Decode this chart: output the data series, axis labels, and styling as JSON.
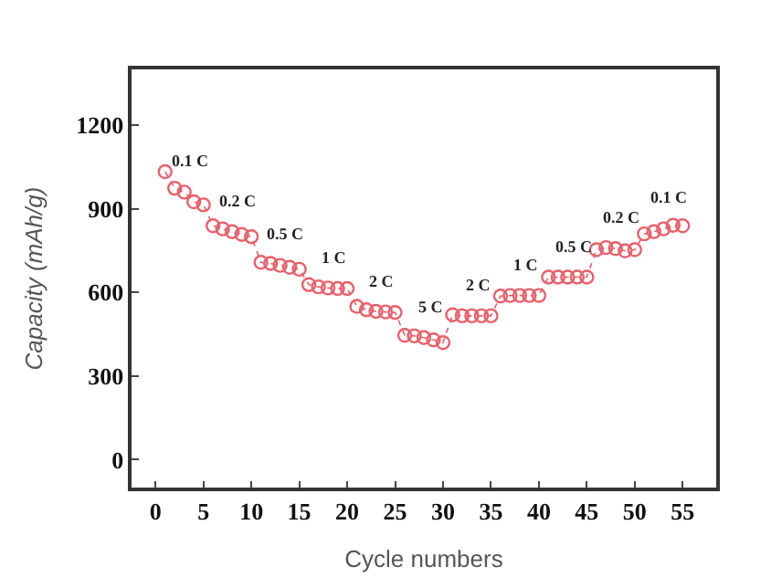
{
  "chart_data": {
    "type": "line",
    "xlabel": "Cycle numbers",
    "ylabel": "Capacity (mAh/g)",
    "x": [
      1,
      2,
      3,
      4,
      5,
      6,
      7,
      8,
      9,
      10,
      11,
      12,
      13,
      14,
      15,
      16,
      17,
      18,
      19,
      20,
      21,
      22,
      23,
      24,
      25,
      26,
      27,
      28,
      29,
      30,
      31,
      32,
      33,
      34,
      35,
      36,
      37,
      38,
      39,
      40,
      41,
      42,
      43,
      44,
      45,
      46,
      47,
      48,
      49,
      50,
      51,
      52,
      53,
      54,
      55
    ],
    "series": [
      {
        "color": "#e8606a",
        "values": [
          1033,
          974,
          960,
          925,
          914,
          839,
          828,
          818,
          808,
          800,
          708,
          704,
          697,
          690,
          683,
          628,
          620,
          616,
          614,
          614,
          550,
          538,
          532,
          530,
          528,
          446,
          444,
          438,
          430,
          420,
          520,
          516,
          516,
          516,
          516,
          587,
          589,
          589,
          589,
          589,
          655,
          655,
          655,
          655,
          655,
          753,
          761,
          757,
          749,
          753,
          810,
          818,
          828,
          841,
          839
        ]
      }
    ],
    "marker": "circle",
    "line_style": "dotted",
    "xlim": [
      -2.5,
      58.5
    ],
    "xticks": [
      0,
      5,
      10,
      15,
      20,
      25,
      30,
      35,
      40,
      45,
      50,
      55
    ],
    "ylim": [
      -100,
      1400
    ],
    "yticks": [
      0,
      300,
      600,
      900,
      1200
    ],
    "annotations": [
      {
        "text": "0.1 C",
        "x": 3,
        "y": 960
      },
      {
        "text": "0.2 C",
        "x": 8,
        "y": 818
      },
      {
        "text": "0.5 C",
        "x": 13,
        "y": 697
      },
      {
        "text": "1 C",
        "x": 18,
        "y": 616
      },
      {
        "text": "2 C",
        "x": 23,
        "y": 532
      },
      {
        "text": "5 C",
        "x": 28,
        "y": 438
      },
      {
        "text": "2 C",
        "x": 33,
        "y": 516
      },
      {
        "text": "1 C",
        "x": 38,
        "y": 589
      },
      {
        "text": "0.5 C",
        "x": 43,
        "y": 655
      },
      {
        "text": "0.2 C",
        "x": 48,
        "y": 757
      },
      {
        "text": "0.1 C",
        "x": 53,
        "y": 828
      }
    ]
  }
}
